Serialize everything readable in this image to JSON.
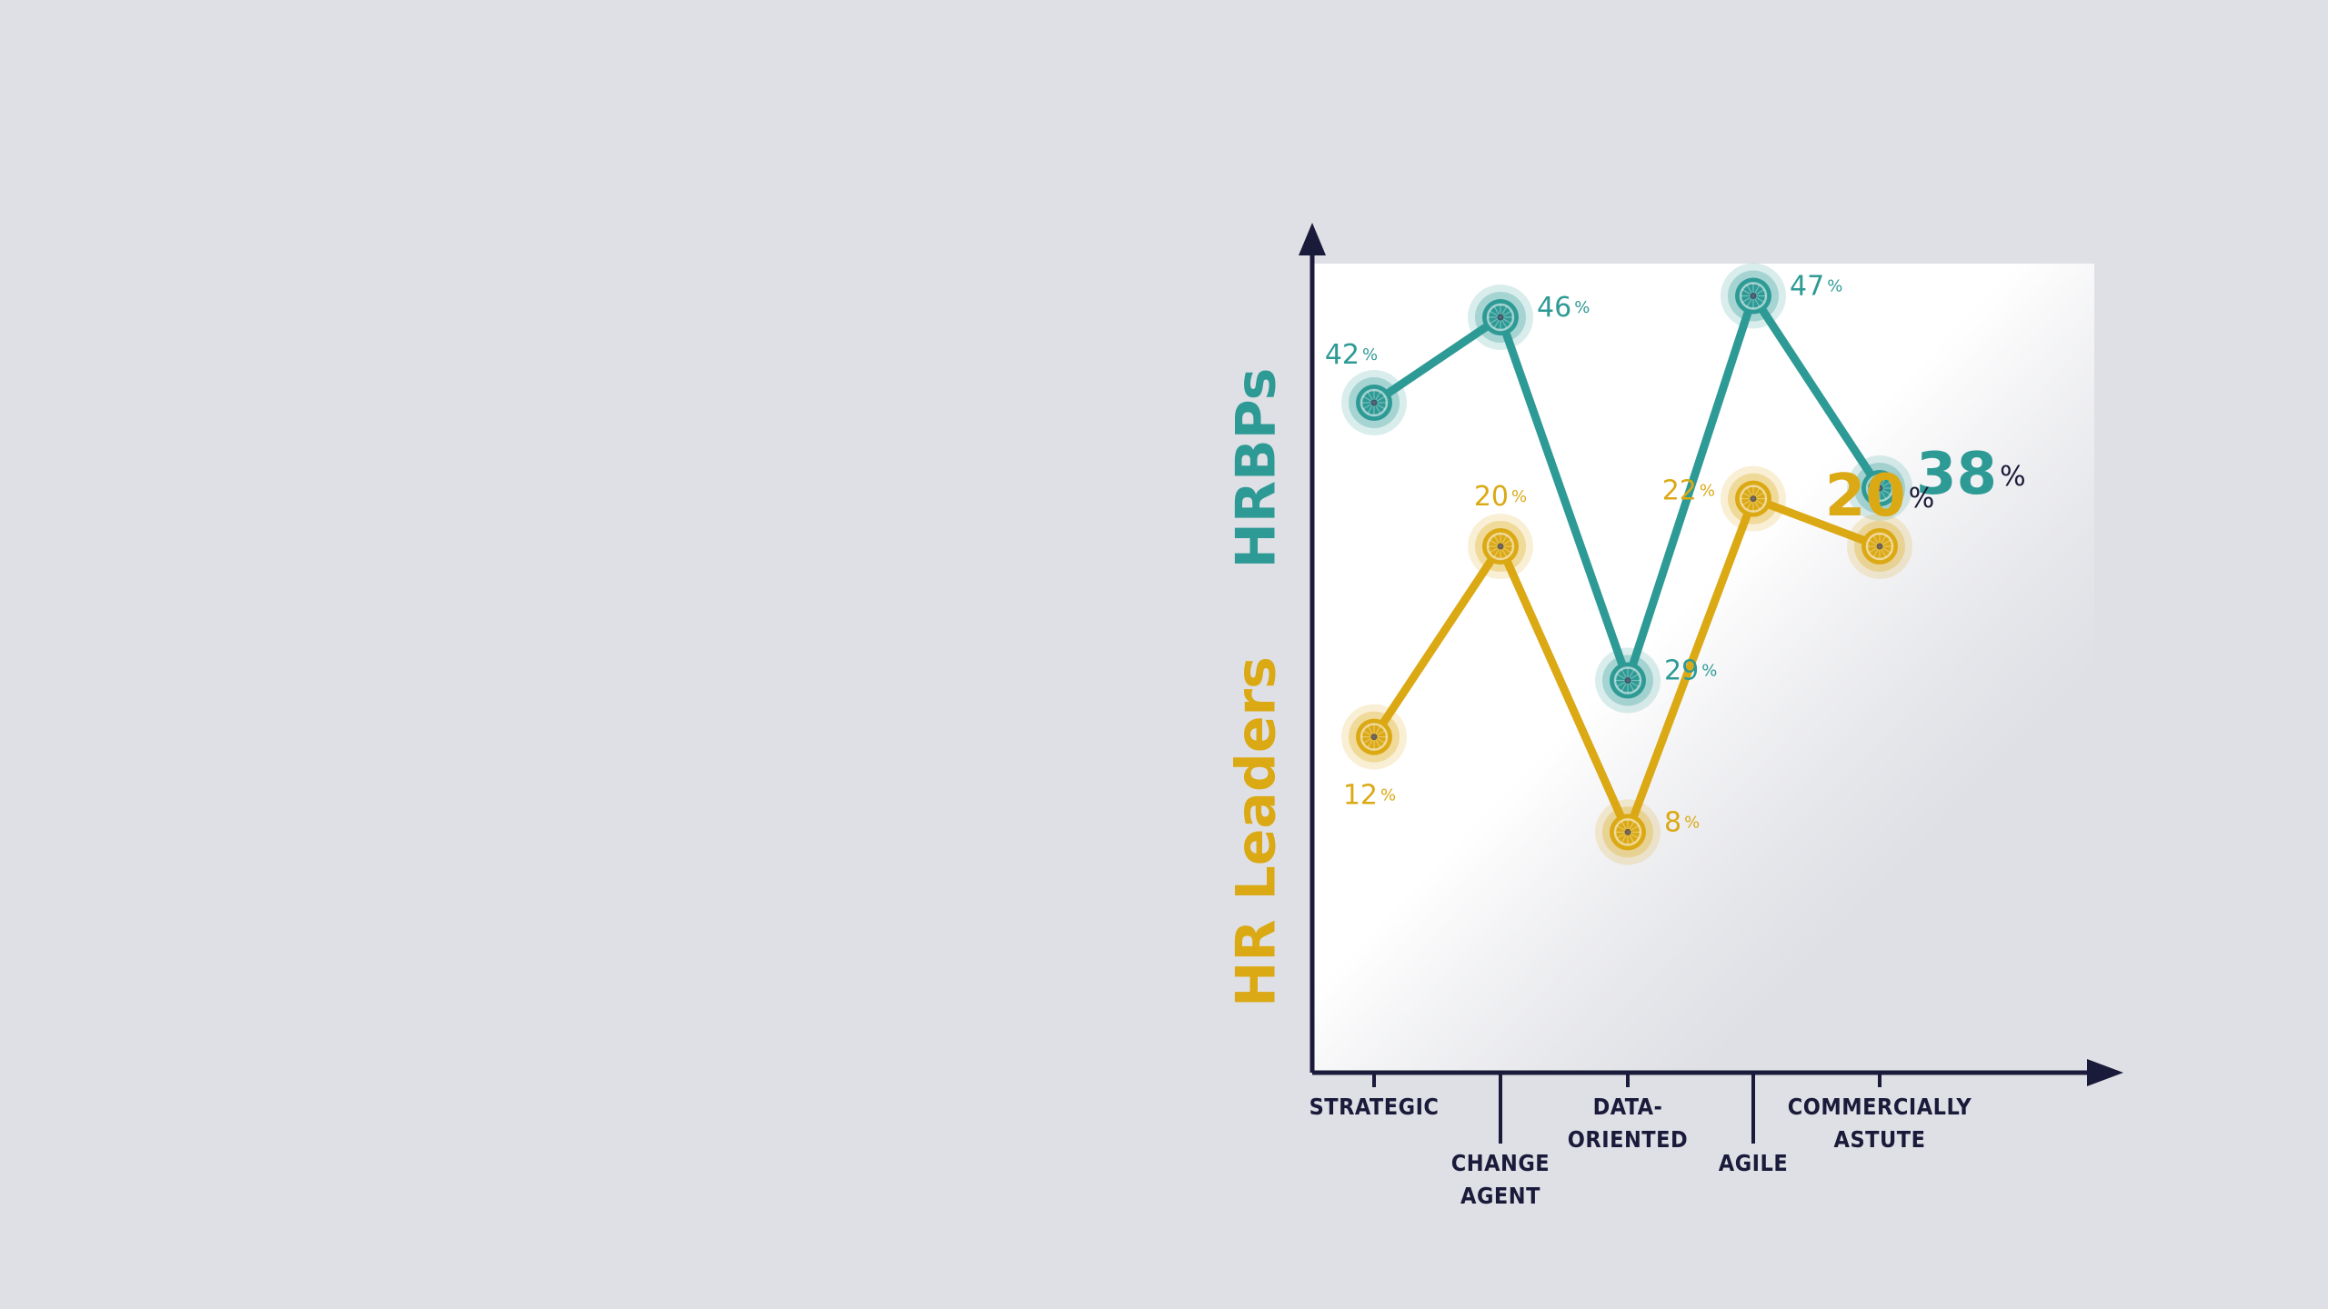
{
  "chart_data": {
    "type": "line",
    "categories": [
      [
        "STRATEGIC"
      ],
      [
        "CHANGE",
        "AGENT"
      ],
      [
        "DATA-",
        "ORIENTED"
      ],
      [
        "AGILE"
      ],
      [
        "COMMERCIALLY",
        "ASTUTE"
      ]
    ],
    "series": [
      {
        "name": "HRBPs",
        "color": "#2e9a95",
        "values": [
          42,
          46,
          29,
          47,
          38
        ],
        "value_labels": [
          "42",
          "46",
          "29",
          "47",
          "38"
        ],
        "percent_sign": "%"
      },
      {
        "name": "HR Leaders",
        "color": "#dba914",
        "values": [
          12,
          20,
          8,
          22,
          20
        ],
        "value_labels": [
          "12",
          "20",
          "8",
          "22",
          "20"
        ],
        "percent_sign": "%"
      }
    ],
    "highlighted_point": "last",
    "axis_color": "#1a1a3a",
    "background_color": "#dfe0e5",
    "plot_area_color": "#ffffff",
    "grid": false,
    "legend": "none"
  }
}
